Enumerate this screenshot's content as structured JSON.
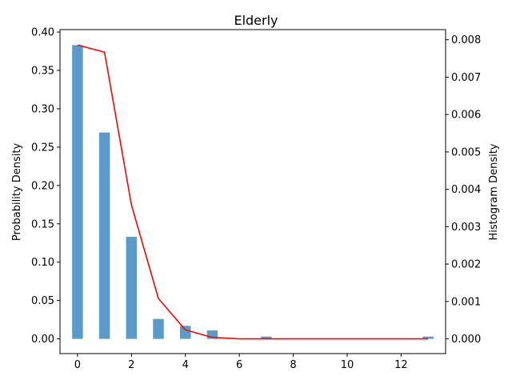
{
  "chart_data": {
    "type": "bar",
    "title": "Elderly",
    "xlabel": "",
    "ylabel": "Probability Density",
    "ylabel_right": "Histogram Density",
    "xlim": [
      -0.65,
      13.65
    ],
    "ylim": [
      -0.0192,
      0.4032
    ],
    "ylim_right": [
      -0.000394,
      0.008272
    ],
    "x_ticks": [
      0,
      2,
      4,
      6,
      8,
      10,
      12
    ],
    "y_ticks": [
      0.0,
      0.05,
      0.1,
      0.15,
      0.2,
      0.25,
      0.3,
      0.35,
      0.4
    ],
    "y_ticks_right": [
      0.0,
      0.001,
      0.002,
      0.003,
      0.004,
      0.005,
      0.006,
      0.007,
      0.008
    ],
    "grid": false,
    "series": [
      {
        "kind": "bar",
        "axis": "left",
        "color": "#5B9BCB",
        "bar_width": 0.4,
        "x": [
          0,
          1,
          2,
          3,
          4,
          5,
          7,
          13
        ],
        "values": [
          0.383,
          0.269,
          0.133,
          0.026,
          0.017,
          0.011,
          0.003,
          0.003
        ]
      },
      {
        "kind": "line",
        "axis": "right",
        "color": "#FF0000",
        "x": [
          0,
          1,
          2,
          3,
          4,
          5,
          6,
          7,
          8,
          9,
          10,
          11,
          12,
          13
        ],
        "values": [
          0.00786,
          0.00767,
          0.00358,
          0.00108,
          0.00024,
          4e-05,
          0.0,
          0.0,
          0.0,
          0.0,
          0.0,
          0.0,
          0.0,
          0.0
        ]
      }
    ]
  }
}
